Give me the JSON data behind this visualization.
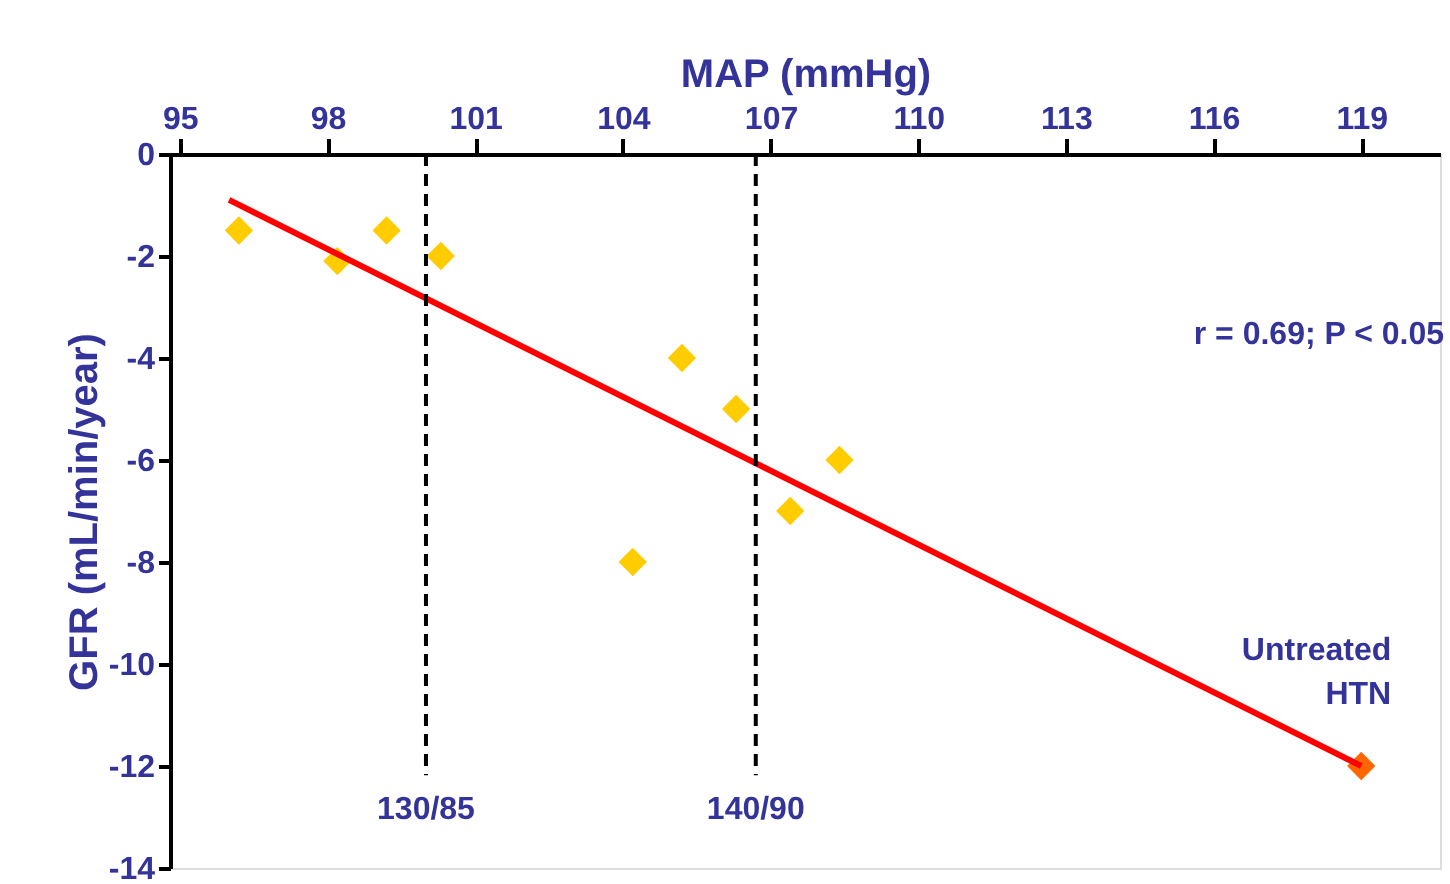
{
  "chart_data": {
    "type": "scatter",
    "xlabel": "MAP (mmHg)",
    "ylabel": "GFR (mL/min/year)",
    "xlim": [
      94.8,
      120.6
    ],
    "xticks": [
      95,
      98,
      101,
      104,
      107,
      110,
      113,
      116,
      119
    ],
    "ylim": [
      -14,
      0
    ],
    "yticks": [
      0,
      -2,
      -4,
      -6,
      -8,
      -10,
      -12,
      -14
    ],
    "series": [
      {
        "marker": "diamond",
        "x": [
          96.2,
          98.2,
          99.2,
          100.3,
          104.2,
          105.2,
          106.3,
          107.4,
          108.4,
          119
        ],
        "values": [
          -1.5,
          -2.1,
          -1.5,
          -2,
          -8,
          -4,
          -5,
          -7,
          -6,
          -12
        ],
        "colors": [
          "#ffcc00",
          "#ffcc00",
          "#ffcc00",
          "#ffcc00",
          "#ffcc00",
          "#ffcc00",
          "#ffcc00",
          "#ffcc00",
          "#ffcc00",
          "#ff6600"
        ]
      },
      {
        "type": "line",
        "x": [
          96,
          119
        ],
        "values": [
          -0.9,
          -12
        ],
        "color": "#ff0000",
        "line_style": "solid",
        "marker": "none"
      }
    ],
    "ref_lines": [
      {
        "axis": "x",
        "value": 100,
        "color": "#000000",
        "line_style": "dashed"
      },
      {
        "axis": "x",
        "value": 106.7,
        "color": "#000000",
        "line_style": "dashed"
      }
    ],
    "annotations": [
      "r = 0.69; P < 0.05",
      {
        "text": "Untreated HTN",
        "x": 119,
        "y": -12
      },
      {
        "text": "130/85",
        "x": 100,
        "y": -12.3
      },
      {
        "text": "140/90",
        "x": 106.7,
        "y": -12.3
      }
    ]
  }
}
